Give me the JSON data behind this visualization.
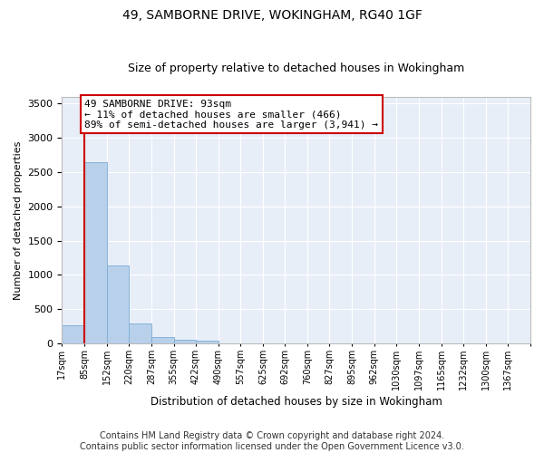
{
  "title": "49, SAMBORNE DRIVE, WOKINGHAM, RG40 1GF",
  "subtitle": "Size of property relative to detached houses in Wokingham",
  "xlabel": "Distribution of detached houses by size in Wokingham",
  "ylabel": "Number of detached properties",
  "bar_color": "#b8d0ea",
  "bar_edge_color": "#7aaed6",
  "background_color": "#e8eef8",
  "grid_color": "#ffffff",
  "annotation_text": "49 SAMBORNE DRIVE: 93sqm\n← 11% of detached houses are smaller (466)\n89% of semi-detached houses are larger (3,941) →",
  "annotation_box_color": "#ffffff",
  "annotation_box_edge": "#cc0000",
  "vline_x_bin": 1,
  "vline_color": "#cc0000",
  "categories": [
    "17sqm",
    "85sqm",
    "152sqm",
    "220sqm",
    "287sqm",
    "355sqm",
    "422sqm",
    "490sqm",
    "557sqm",
    "625sqm",
    "692sqm",
    "760sqm",
    "827sqm",
    "895sqm",
    "962sqm",
    "1030sqm",
    "1097sqm",
    "1165sqm",
    "1232sqm",
    "1300sqm",
    "1367sqm"
  ],
  "bin_edges": [
    17,
    85,
    152,
    220,
    287,
    355,
    422,
    490,
    557,
    625,
    692,
    760,
    827,
    895,
    962,
    1030,
    1097,
    1165,
    1232,
    1300,
    1367,
    1435
  ],
  "values": [
    270,
    2650,
    1140,
    285,
    90,
    55,
    35,
    0,
    0,
    0,
    0,
    0,
    0,
    0,
    0,
    0,
    0,
    0,
    0,
    0,
    0
  ],
  "ylim": [
    0,
    3600
  ],
  "yticks": [
    0,
    500,
    1000,
    1500,
    2000,
    2500,
    3000,
    3500
  ],
  "footer": "Contains HM Land Registry data © Crown copyright and database right 2024.\nContains public sector information licensed under the Open Government Licence v3.0.",
  "title_fontsize": 10,
  "subtitle_fontsize": 9,
  "ylabel_fontsize": 8,
  "xlabel_fontsize": 8.5,
  "tick_fontsize": 7,
  "footer_fontsize": 7,
  "annot_fontsize": 8
}
